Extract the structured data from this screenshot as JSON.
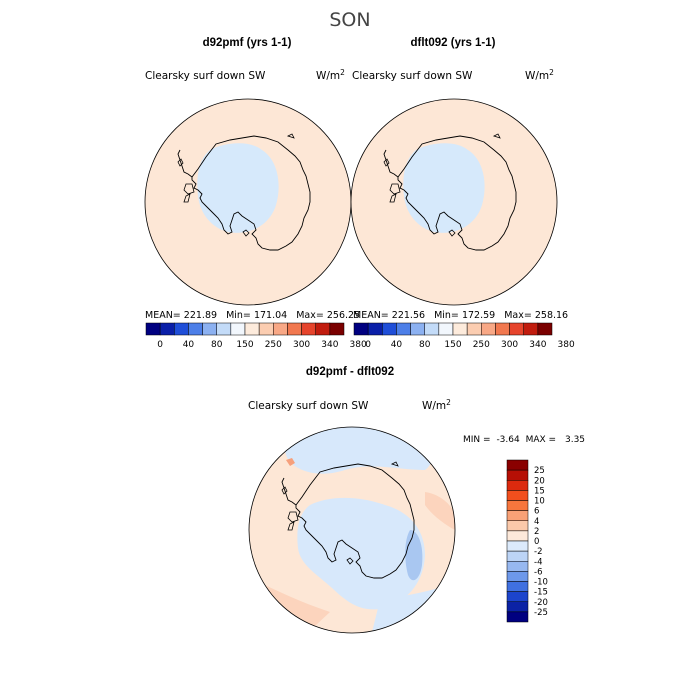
{
  "figure": {
    "title": "SON"
  },
  "colors": {
    "ocean_pos": "#fde7d6",
    "ocean_pos_strong": "#fcd4bd",
    "ice_low": "#d6e9fb",
    "diff_neg": "#d7e8fb",
    "diff_neg_strong": "#a9c7f1",
    "coast": "#000000"
  },
  "chart_data": [
    {
      "type": "heatmap",
      "id": "panel-a",
      "title": "d92pmf (yrs 1-1)",
      "variable_label": "Clearsky surf down SW",
      "units_text": "W/m",
      "units_sup": "2",
      "stats": {
        "mean_label": "MEAN=",
        "mean": "221.89",
        "min_label": "Min=",
        "min": "171.04",
        "max_label": "Max=",
        "max": "256.25"
      },
      "colorbar": {
        "tick_labels": [
          "0",
          "40",
          "80",
          "150",
          "250",
          "300",
          "340",
          "380"
        ],
        "colors": [
          "#000080",
          "#0a1fa8",
          "#1f4ed8",
          "#4d7fe8",
          "#8cb1f1",
          "#c3dbf8",
          "#f2f7fd",
          "#fdebdc",
          "#fbcdb1",
          "#f8a886",
          "#f1784f",
          "#e6442c",
          "#c11c0e",
          "#7a0000"
        ]
      }
    },
    {
      "type": "heatmap",
      "id": "panel-b",
      "title": "dflt092 (yrs 1-1)",
      "variable_label": "Clearsky surf down SW",
      "units_text": "W/m",
      "units_sup": "2",
      "stats": {
        "mean_label": "MEAN=",
        "mean": "221.56",
        "min_label": "Min=",
        "min": "172.59",
        "max_label": "Max=",
        "max": "258.16"
      },
      "colorbar": {
        "tick_labels": [
          "0",
          "40",
          "80",
          "150",
          "250",
          "300",
          "340",
          "380"
        ],
        "colors": [
          "#000080",
          "#0a1fa8",
          "#1f4ed8",
          "#4d7fe8",
          "#8cb1f1",
          "#c3dbf8",
          "#f2f7fd",
          "#fdebdc",
          "#fbcdb1",
          "#f8a886",
          "#f1784f",
          "#e6442c",
          "#c11c0e",
          "#7a0000"
        ]
      }
    },
    {
      "type": "heatmap",
      "id": "panel-diff",
      "title": "d92pmf - dflt092",
      "variable_label": "Clearsky surf down SW",
      "units_text": "W/m",
      "units_sup": "2",
      "stats": {
        "min_label": "MIN =",
        "min": "-3.64",
        "max_label": "MAX =",
        "max": "3.35"
      },
      "colorbar": {
        "tick_labels": [
          "25",
          "20",
          "15",
          "10",
          "6",
          "4",
          "2",
          "0",
          "-2",
          "-4",
          "-6",
          "-10",
          "-15",
          "-20",
          "-25"
        ],
        "colors": [
          "#8a0000",
          "#b60f05",
          "#dc2a0e",
          "#f24f1d",
          "#f7763d",
          "#f9a176",
          "#fbc9aa",
          "#fde9da",
          "#dceafb",
          "#bcd4f6",
          "#97b8f0",
          "#6d98ea",
          "#4070e0",
          "#1c44cc",
          "#0b22a5",
          "#000080"
        ]
      }
    }
  ]
}
